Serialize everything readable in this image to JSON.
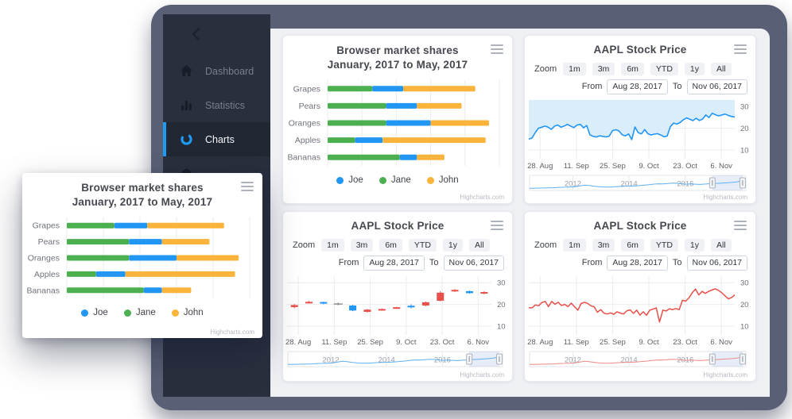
{
  "app_window": {
    "sidebar": {
      "back_icon": "chevron-left",
      "items": [
        {
          "label": "Dashboard",
          "icon": "home-icon",
          "active": false
        },
        {
          "label": "Statistics",
          "icon": "bar-chart-icon",
          "active": false
        },
        {
          "label": "Charts",
          "icon": "donut-icon",
          "active": true
        },
        {
          "label": "",
          "icon": "cube-icon",
          "active": false
        }
      ]
    }
  },
  "stock": {
    "title": "AAPL Stock Price",
    "zoom_label": "Zoom",
    "zoom_buttons": [
      "1m",
      "3m",
      "6m",
      "YTD",
      "1y",
      "All"
    ],
    "from_label": "From",
    "from_value": "Aug 28, 2017",
    "to_label": "To",
    "to_value": "Nov 06, 2017",
    "credit": "Highcharts.com"
  },
  "colors": {
    "accent_blue": "#1e9cf5",
    "series_blue": "#2196f3",
    "series_green": "#4caf50",
    "series_yellow": "#fab43c",
    "series_red": "#e8504b",
    "doji_gray": "#888888",
    "area_fill": "#d9edfb",
    "nav_blue": "#5fb0ef",
    "nav_red": "#ec8a85",
    "sidebar_bg": "#2a2f3e",
    "content_bg": "#eef0f4"
  },
  "chart_data": [
    {
      "id": "browser-market-shares",
      "type": "bar",
      "horizontal": true,
      "stacked": true,
      "title": "Browser market shares",
      "subtitle": "January, 2017 to May, 2017",
      "categories": [
        "Grapes",
        "Pears",
        "Oranges",
        "Apples",
        "Bananas"
      ],
      "series": [
        {
          "name": "Joe",
          "color": "#2196f3",
          "values": [
            0.9,
            0.9,
            1.3,
            0.8,
            0.5
          ]
        },
        {
          "name": "Jane",
          "color": "#4caf50",
          "values": [
            1.3,
            1.7,
            1.7,
            0.8,
            2.1
          ]
        },
        {
          "name": "John",
          "color": "#fab43c",
          "values": [
            2.1,
            1.3,
            1.7,
            3.0,
            0.8
          ]
        }
      ],
      "stack_order": [
        "Jane",
        "Joe",
        "John"
      ],
      "xlim": [
        0,
        5
      ],
      "grid": true,
      "legend_position": "bottom",
      "credit": "Highcharts.com"
    },
    {
      "id": "aapl-area",
      "type": "area",
      "title": "AAPL Stock Price",
      "x_ticks": [
        "28. Aug",
        "11. Sep",
        "25. Sep",
        "9. Oct",
        "23. Oct",
        "6. Nov"
      ],
      "yticks": [
        10,
        20,
        30
      ],
      "ylim": [
        6,
        33
      ],
      "color": "#2196f3",
      "fill_color": "#d9edfb",
      "fill_direction": "above",
      "values": [
        15,
        15.5,
        18,
        20,
        20.5,
        21,
        20.5,
        19.5,
        21,
        21.5,
        20.5,
        21,
        21.8,
        21,
        20.3,
        21.5,
        21.8,
        20.2,
        21.3,
        17,
        16.3,
        16,
        16.5,
        16.3,
        16,
        16.4,
        18.9,
        19.3,
        18.8,
        17,
        16.5,
        17.4,
        14.8,
        20.6,
        18,
        17.4,
        19.4,
        17.5,
        16.9,
        17.3,
        17.5,
        16.9,
        16.1,
        16.4,
        20.8,
        22.4,
        21.9,
        22.6,
        23.9,
        24.8,
        24.2,
        23.5,
        24.6,
        23.6,
        24.2,
        26.1,
        24.9,
        26.9,
        26.2,
        25.7,
        26.1,
        26.5,
        25.9,
        25.4,
        25.2
      ]
    },
    {
      "id": "aapl-candlestick",
      "type": "candlestick",
      "title": "AAPL Stock Price",
      "x_ticks": [
        "28. Aug",
        "11. Sep",
        "25. Sep",
        "9. Oct",
        "23. Oct",
        "6. Nov"
      ],
      "yticks": [
        10,
        20,
        30
      ],
      "ylim": [
        6,
        33
      ],
      "up_color": "#2196f3",
      "down_color": "#e8504b",
      "doji_color": "#888888",
      "ohlc": [
        [
          19.7,
          20.1,
          18.3,
          18.8
        ],
        [
          21.2,
          21.6,
          20.4,
          20.7
        ],
        [
          20.4,
          21.3,
          20.1,
          21.1
        ],
        [
          20.2,
          20.8,
          19.6,
          20.2
        ],
        [
          17.2,
          19.8,
          16.9,
          19.5
        ],
        [
          17.6,
          17.9,
          16.3,
          16.6
        ],
        [
          17.9,
          18.1,
          17.2,
          17.5
        ],
        [
          18.7,
          18.9,
          18.0,
          18.3
        ],
        [
          18.9,
          20.0,
          18.2,
          19.4
        ],
        [
          21.0,
          21.3,
          19.2,
          19.5
        ],
        [
          25.4,
          26.0,
          21.4,
          21.7
        ],
        [
          26.7,
          27.0,
          25.8,
          26.1
        ],
        [
          25.2,
          26.4,
          24.9,
          26.1
        ],
        [
          25.7,
          26.0,
          24.7,
          25.1
        ]
      ]
    },
    {
      "id": "aapl-line",
      "type": "line",
      "title": "AAPL Stock Price",
      "x_ticks": [
        "28. Aug",
        "11. Sep",
        "25. Sep",
        "9. Oct",
        "23. Oct",
        "6. Nov"
      ],
      "yticks": [
        10,
        20,
        30
      ],
      "ylim": [
        6,
        33
      ],
      "color": "#e8504b",
      "values": [
        18.5,
        18.4,
        19.8,
        19.4,
        20.9,
        21.4,
        19.0,
        21.4,
        20.1,
        21.0,
        19.5,
        20.0,
        19.0,
        20.6,
        18.9,
        17.4,
        20.4,
        21.0,
        20.5,
        19.4,
        18.9,
        16.4,
        17.6,
        16.0,
        15.6,
        16.1,
        15.5,
        16.6,
        16.0,
        15.6,
        17.1,
        17.5,
        15.9,
        17.4,
        15.1,
        16.6,
        15.0,
        17.4,
        17.9,
        18.4,
        11.9,
        17.4,
        17.0,
        18.0,
        17.6,
        18.1,
        17.6,
        21.9,
        21.5,
        23.0,
        25.4,
        27.1,
        24.4,
        26.0,
        25.1,
        26.0,
        26.6,
        27.2,
        26.5,
        25.4,
        24.0,
        22.6,
        23.1,
        24.4
      ]
    }
  ],
  "navigator": {
    "years": [
      "2012",
      "2014",
      "2016"
    ],
    "year_fractions": [
      0.2,
      0.46,
      0.72
    ],
    "selected_range": [
      0.845,
      0.985
    ],
    "values": [
      0.05,
      0.06,
      0.07,
      0.08,
      0.09,
      0.1,
      0.12,
      0.14,
      0.15,
      0.17,
      0.2,
      0.28,
      0.34,
      0.3,
      0.24,
      0.19,
      0.17,
      0.16,
      0.18,
      0.21,
      0.22,
      0.24,
      0.25,
      0.27,
      0.3,
      0.34,
      0.38,
      0.43,
      0.46,
      0.44,
      0.48,
      0.52,
      0.5,
      0.46,
      0.42,
      0.44,
      0.42,
      0.4,
      0.43,
      0.46,
      0.48,
      0.5,
      0.53,
      0.56,
      0.58,
      0.62,
      0.7,
      0.92
    ]
  }
}
